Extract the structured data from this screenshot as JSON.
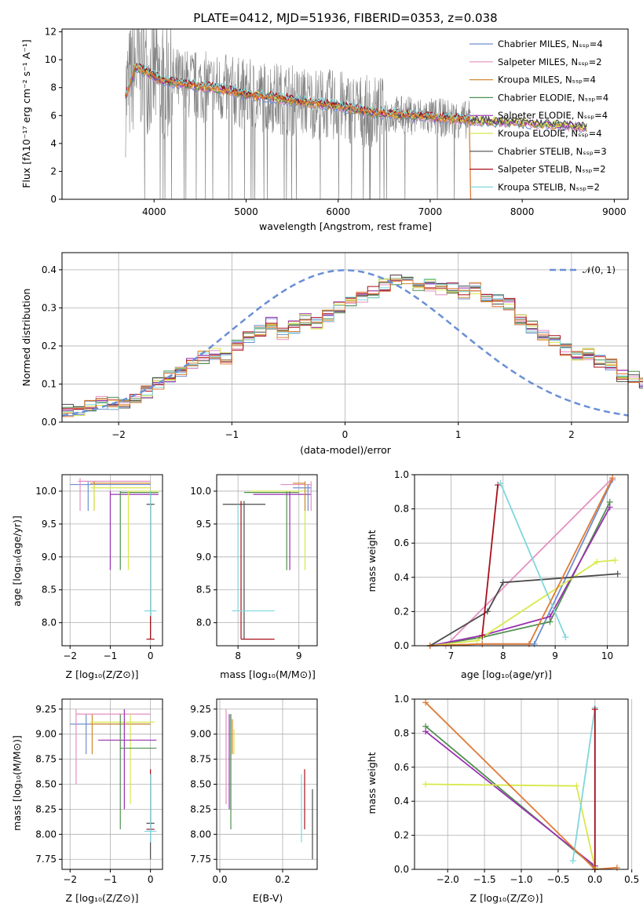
{
  "figure": {
    "title": "PLATE=0412, MJD=51936, FIBERID=0353, z=0.038"
  },
  "palette": {
    "Chabrier MILES": "#6f8fcf",
    "Salpeter MILES": "#e58fc0",
    "Kroupa MILES": "#d08a30",
    "Chabrier ELODIE": "#4f8f4f",
    "Salpeter ELODIE": "#9a30b0",
    "Kroupa ELODIE": "#d8e84a",
    "Chabrier STELIB": "#4a4a4a",
    "Salpeter STELIB": "#a80f1a",
    "Kroupa STELIB": "#7fd7dd",
    "data": "#808080",
    "orange": "#e07a35",
    "normal": "#6a8fd6"
  },
  "chart_data": [
    {
      "id": "spectrum",
      "type": "line",
      "title": "PLATE=0412, MJD=51936, FIBERID=0353, z=0.038",
      "xlabel": "wavelength [Angstrom, rest frame]",
      "ylabel": "Flux [fλ10⁻¹⁷ erg cm⁻² s⁻¹ A⁻¹]",
      "xlim": [
        3000,
        9150
      ],
      "ylim": [
        0,
        12.2
      ],
      "xticks": [
        "4000",
        "5000",
        "6000",
        "7000",
        "8000",
        "9000"
      ],
      "yticks": [
        "0",
        "2",
        "4",
        "6",
        "8",
        "10",
        "12"
      ],
      "legend_position": "top-right",
      "legend": [
        "Chabrier MILES, Nₛₛₚ=4",
        "Salpeter MILES, Nₛₛₚ=2",
        "Kroupa MILES, Nₛₛₚ=4",
        "Chabrier ELODIE, Nₛₛₚ=4",
        "Salpeter ELODIE, Nₛₛₚ=4",
        "Kroupa ELODIE, Nₛₛₚ=4",
        "Chabrier STELIB, Nₛₛₚ=3",
        "Salpeter STELIB, Nₛₛₚ=2",
        "Kroupa STELIB, Nₛₛₚ=2"
      ],
      "continuum": {
        "x": [
          3700,
          3800,
          3900,
          4000,
          4100,
          4300,
          4500,
          4800,
          5000,
          5300,
          5600,
          6000,
          6300,
          6600,
          7000,
          7400,
          7700,
          8000,
          8300,
          8700
        ],
        "y": [
          7.5,
          9.5,
          9.2,
          8.8,
          8.5,
          8.3,
          8.1,
          7.8,
          7.5,
          7.3,
          7.0,
          6.7,
          6.3,
          6.1,
          5.9,
          5.7,
          5.6,
          5.5,
          5.4,
          5.2
        ]
      }
    },
    {
      "id": "residuals",
      "type": "histogram",
      "xlabel": "(data-model)/error",
      "ylabel": "Normed distribution",
      "xlim": [
        -2.5,
        2.5
      ],
      "ylim": [
        0,
        0.445
      ],
      "xticks": [
        "−2",
        "−1",
        "0",
        "1",
        "2"
      ],
      "yticks": [
        "0.0",
        "0.1",
        "0.2",
        "0.3",
        "0.4"
      ],
      "legend": [
        "𝒩(0, 1)"
      ],
      "legend_position": "top-right",
      "bin_width": 0.1,
      "hist_center": [
        0.03,
        0.03,
        0.04,
        0.05,
        0.05,
        0.05,
        0.06,
        0.08,
        0.1,
        0.12,
        0.13,
        0.15,
        0.17,
        0.18,
        0.17,
        0.2,
        0.22,
        0.24,
        0.26,
        0.23,
        0.25,
        0.27,
        0.26,
        0.28,
        0.3,
        0.32,
        0.33,
        0.34,
        0.36,
        0.37,
        0.37,
        0.36,
        0.36,
        0.35,
        0.35,
        0.34,
        0.35,
        0.33,
        0.32,
        0.31,
        0.27,
        0.25,
        0.23,
        0.21,
        0.19,
        0.17,
        0.18,
        0.16,
        0.15,
        0.12,
        0.12,
        0.1,
        0.08,
        0.09,
        0.07,
        0.07,
        0.06,
        0.06,
        0.05,
        0.05
      ]
    },
    {
      "id": "age-vs-Z",
      "type": "errorbar",
      "xlabel": "Z [log₁₀(Z/Z⊙)]",
      "ylabel": "age  [log₁₀(age/yr)]",
      "xlim": [
        -2.2,
        0.3
      ],
      "ylim": [
        7.65,
        10.25
      ],
      "xticks": [
        "−2",
        "−1",
        "0"
      ],
      "yticks": [
        "8.0",
        "8.5",
        "9.0",
        "9.5",
        "10.0"
      ]
    },
    {
      "id": "age-vs-mass",
      "type": "errorbar",
      "xlabel": "mass [log₁₀(M/M⊙)]",
      "xlim": [
        7.65,
        9.3
      ],
      "ylim": [
        7.65,
        10.25
      ],
      "xticks": [
        "8",
        "9"
      ],
      "yticks": [
        "8.0",
        "8.5",
        "9.0",
        "9.5",
        "10.0"
      ]
    },
    {
      "id": "massweight-vs-age",
      "type": "line",
      "xlabel": "age  [log₁₀(age/yr)]",
      "ylabel": "mass weight",
      "xlim": [
        6.3,
        10.4
      ],
      "ylim": [
        0,
        1
      ],
      "xticks": [
        "7",
        "8",
        "9",
        "10"
      ],
      "yticks": [
        "0.0",
        "0.2",
        "0.4",
        "0.6",
        "0.8",
        "1.0"
      ],
      "series": [
        {
          "name": "Chabrier MILES",
          "x": [
            6.6,
            7.6,
            8.6,
            10.1
          ],
          "y": [
            0.0,
            0.01,
            0.01,
            0.97
          ]
        },
        {
          "name": "Salpeter MILES",
          "x": [
            6.9,
            10.1
          ],
          "y": [
            0.0,
            0.98
          ]
        },
        {
          "name": "Chabrier ELODIE",
          "x": [
            6.6,
            7.6,
            8.9,
            10.05
          ],
          "y": [
            0.0,
            0.05,
            0.14,
            0.84
          ]
        },
        {
          "name": "Salpeter ELODIE",
          "x": [
            6.6,
            7.6,
            8.9,
            10.05
          ],
          "y": [
            0.0,
            0.06,
            0.17,
            0.81
          ]
        },
        {
          "name": "Kroupa ELODIE",
          "x": [
            6.6,
            7.5,
            9.8,
            10.15
          ],
          "y": [
            0.0,
            0.03,
            0.49,
            0.5
          ]
        },
        {
          "name": "Chabrier STELIB",
          "x": [
            6.6,
            7.7,
            8.0,
            10.2
          ],
          "y": [
            0.0,
            0.2,
            0.37,
            0.42
          ]
        },
        {
          "name": "Salpeter STELIB",
          "x": [
            7.6,
            7.9
          ],
          "y": [
            0.06,
            0.94
          ]
        },
        {
          "name": "Kroupa STELIB",
          "x": [
            7.95,
            9.2
          ],
          "y": [
            0.95,
            0.05
          ]
        },
        {
          "name": "Kroupa MILES",
          "x": [
            6.6,
            7.6,
            8.5,
            10.1
          ],
          "y": [
            0.0,
            0.01,
            0.01,
            0.98
          ]
        }
      ]
    },
    {
      "id": "mass-vs-Z",
      "type": "errorbar",
      "xlabel": "Z [log₁₀(Z/Z⊙)]",
      "ylabel": "mass [log₁₀(M/M⊙)]",
      "xlim": [
        -2.2,
        0.3
      ],
      "ylim": [
        7.65,
        9.35
      ],
      "xticks": [
        "−2",
        "−1",
        "0"
      ],
      "yticks": [
        "7.75",
        "8.00",
        "8.25",
        "8.50",
        "8.75",
        "9.00",
        "9.25"
      ]
    },
    {
      "id": "mass-vs-EBV",
      "type": "errorbar",
      "xlabel": "E(B-V)",
      "xlim": [
        -0.01,
        0.31
      ],
      "ylim": [
        7.65,
        9.35
      ],
      "xticks": [
        "0.0",
        "0.2"
      ],
      "yticks": [
        "7.75",
        "8.00",
        "8.25",
        "8.50",
        "8.75",
        "9.00",
        "9.25"
      ]
    },
    {
      "id": "massweight-vs-Z",
      "type": "line",
      "xlabel": "Z [log₁₀(Z/Z⊙)]",
      "ylabel": "mass weight",
      "xlim": [
        -2.45,
        0.45
      ],
      "ylim": [
        0,
        1
      ],
      "xticks": [
        "−2.0",
        "−1.5",
        "−1.0",
        "−0.5",
        "0.0",
        "0.5"
      ],
      "yticks": [
        "0.0",
        "0.2",
        "0.4",
        "0.6",
        "0.8",
        "1.0"
      ],
      "series": [
        {
          "name": "Chabrier ELODIE",
          "x": [
            -2.3,
            0.0
          ],
          "y": [
            0.84,
            0.01
          ]
        },
        {
          "name": "Salpeter ELODIE",
          "x": [
            -2.3,
            0.0
          ],
          "y": [
            0.81,
            0.02
          ]
        },
        {
          "name": "Kroupa ELODIE",
          "x": [
            -2.3,
            -0.25,
            0.0
          ],
          "y": [
            0.5,
            0.49,
            0.01
          ]
        },
        {
          "name": "Kroupa STELIB",
          "x": [
            -0.3,
            0.0,
            0.0
          ],
          "y": [
            0.05,
            0.95,
            0.0
          ]
        },
        {
          "name": "Salpeter STELIB",
          "x": [
            0.0,
            0.0
          ],
          "y": [
            0.0,
            0.94
          ]
        },
        {
          "name": "Kroupa MILES",
          "x": [
            -2.3,
            0.0,
            0.3
          ],
          "y": [
            0.98,
            0.0,
            0.01
          ]
        }
      ]
    }
  ]
}
